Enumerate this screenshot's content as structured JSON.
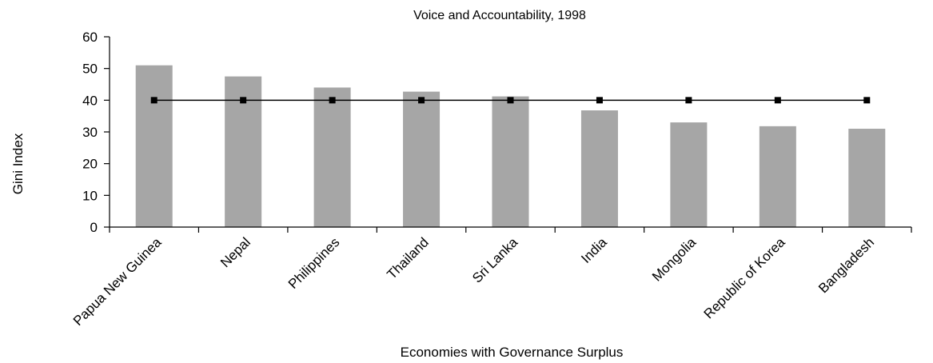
{
  "chart_data": {
    "type": "bar",
    "title": "Voice and Accountability, 1998",
    "xlabel": "Economies with Governance Surplus",
    "ylabel": "Gini Index",
    "ylim": [
      0,
      60
    ],
    "yticks": [
      0,
      10,
      20,
      30,
      40,
      50,
      60
    ],
    "categories": [
      "Papua New Guinea",
      "Nepal",
      "Philippines",
      "Thailand",
      "Sri Lanka",
      "India",
      "Mongolia",
      "Republic of Korea",
      "Bangladesh"
    ],
    "series": [
      {
        "type": "bar",
        "color": "#a6a6a6",
        "values": [
          51,
          47.5,
          44,
          42.7,
          41.2,
          36.8,
          33,
          31.8,
          31
        ]
      },
      {
        "type": "line",
        "color": "#000000",
        "marker": "square",
        "values": [
          40,
          40,
          40,
          40,
          40,
          40,
          40,
          40,
          40
        ]
      }
    ],
    "grid": false,
    "legend": "none"
  }
}
